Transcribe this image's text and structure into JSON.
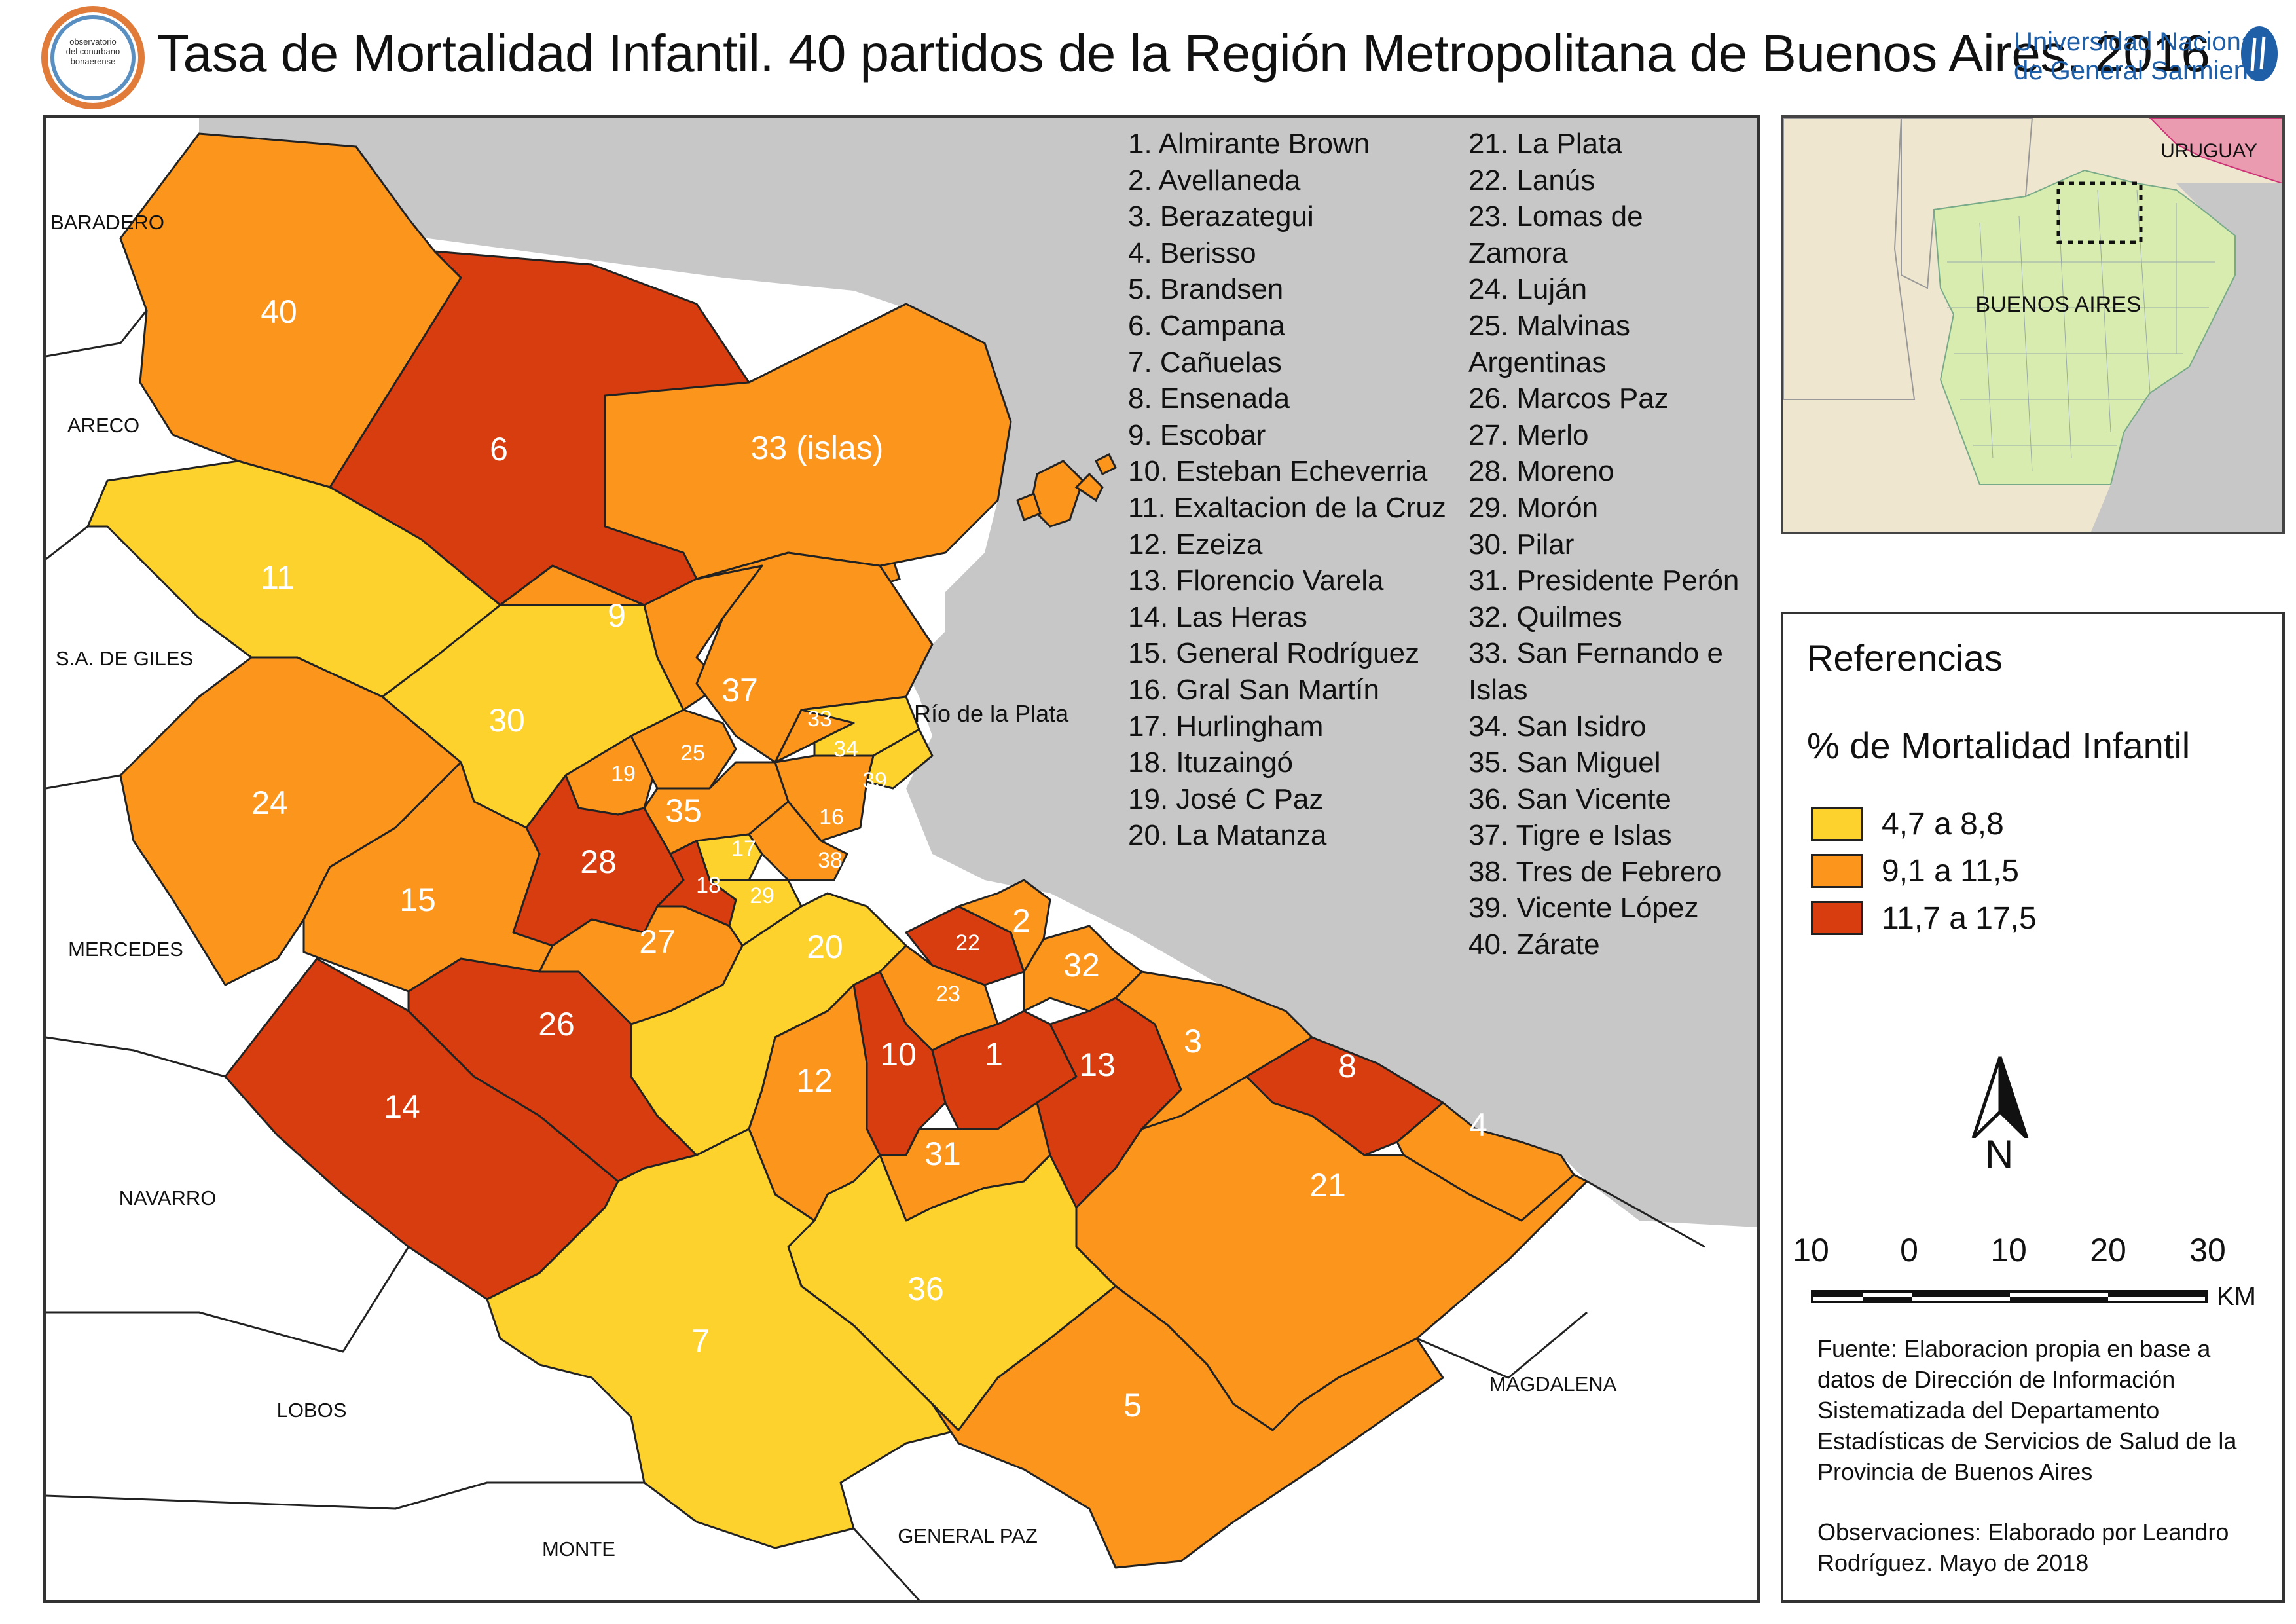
{
  "header": {
    "title": "Tasa de Mortalidad Infantil. 40 partidos de la Región Metropolitana de Buenos Aires. 2016",
    "logo_left_text": [
      "observatorio",
      "del conurbano",
      "bonaerense"
    ],
    "university_line1": "Universidad Nacional",
    "university_line2": "de General Sarmiento"
  },
  "colors": {
    "low": "#fdd22c",
    "mid": "#fb951c",
    "high": "#d83d0f",
    "water": "#c8c8c8",
    "land": "#ffffff",
    "border": "#222222"
  },
  "map": {
    "water_label": "Río de la Plata",
    "neighbors": [
      "BARADERO",
      "ARECO",
      "S.A. DE GILES",
      "MERCEDES",
      "NAVARRO",
      "LOBOS",
      "MONTE",
      "GENERAL PAZ",
      "MAGDALENA"
    ],
    "region_numbers": {
      "n1": "1",
      "n2": "2",
      "n3": "3",
      "n4": "4",
      "n5": "5",
      "n6": "6",
      "n7": "7",
      "n8": "8",
      "n9": "9",
      "n10": "10",
      "n11": "11",
      "n12": "12",
      "n13": "13",
      "n14": "14",
      "n15": "15",
      "n16": "16",
      "n17": "17",
      "n18": "18",
      "n19": "19",
      "n20": "20",
      "n21": "21",
      "n22": "22",
      "n23": "23",
      "n24": "24",
      "n25": "25",
      "n26": "26",
      "n27": "27",
      "n28": "28",
      "n29": "29",
      "n30": "30",
      "n31": "31",
      "n32": "32",
      "n33": "33 (islas)",
      "n33b": "33",
      "n34": "34",
      "n35": "35",
      "n36": "36",
      "n37": "37",
      "n38": "38",
      "n39": "39",
      "n40": "40"
    }
  },
  "partidos": [
    {
      "n": 1,
      "name": "Almirante Brown",
      "class": "high"
    },
    {
      "n": 2,
      "name": "Avellaneda",
      "class": "mid"
    },
    {
      "n": 3,
      "name": "Berazategui",
      "class": "mid"
    },
    {
      "n": 4,
      "name": "Berisso",
      "class": "mid"
    },
    {
      "n": 5,
      "name": "Brandsen",
      "class": "mid"
    },
    {
      "n": 6,
      "name": "Campana",
      "class": "high"
    },
    {
      "n": 7,
      "name": "Cañuelas",
      "class": "low"
    },
    {
      "n": 8,
      "name": "Ensenada",
      "class": "high"
    },
    {
      "n": 9,
      "name": "Escobar",
      "class": "mid"
    },
    {
      "n": 10,
      "name": "Esteban Echeverria",
      "class": "high"
    },
    {
      "n": 11,
      "name": "Exaltacion de la Cruz",
      "class": "low"
    },
    {
      "n": 12,
      "name": "Ezeiza",
      "class": "mid"
    },
    {
      "n": 13,
      "name": "Florencio Varela",
      "class": "high"
    },
    {
      "n": 14,
      "name": "Las Heras",
      "class": "high"
    },
    {
      "n": 15,
      "name": "General Rodríguez",
      "class": "mid"
    },
    {
      "n": 16,
      "name": "Gral San Martín",
      "class": "mid"
    },
    {
      "n": 17,
      "name": "Hurlingham",
      "class": "low"
    },
    {
      "n": 18,
      "name": "Ituzaingó",
      "class": "high"
    },
    {
      "n": 19,
      "name": "José C Paz",
      "class": "mid"
    },
    {
      "n": 20,
      "name": "La Matanza",
      "class": "low"
    },
    {
      "n": 21,
      "name": "La Plata",
      "class": "mid"
    },
    {
      "n": 22,
      "name": "Lanús",
      "class": "high"
    },
    {
      "n": 23,
      "name": "Lomas de Zamora",
      "class": "mid"
    },
    {
      "n": 24,
      "name": "Luján",
      "class": "mid"
    },
    {
      "n": 25,
      "name": "Malvinas Argentinas",
      "class": "mid"
    },
    {
      "n": 26,
      "name": "Marcos Paz",
      "class": "high"
    },
    {
      "n": 27,
      "name": "Merlo",
      "class": "mid"
    },
    {
      "n": 28,
      "name": "Moreno",
      "class": "high"
    },
    {
      "n": 29,
      "name": "Morón",
      "class": "low"
    },
    {
      "n": 30,
      "name": "Pilar",
      "class": "low"
    },
    {
      "n": 31,
      "name": "Presidente Perón",
      "class": "mid"
    },
    {
      "n": 32,
      "name": "Quilmes",
      "class": "mid"
    },
    {
      "n": 33,
      "name": "San Fernando e Islas",
      "class": "mid"
    },
    {
      "n": 34,
      "name": "San Isidro",
      "class": "low"
    },
    {
      "n": 35,
      "name": "San Miguel",
      "class": "mid"
    },
    {
      "n": 36,
      "name": "San Vicente",
      "class": "low"
    },
    {
      "n": 37,
      "name": "Tigre e Islas",
      "class": "mid"
    },
    {
      "n": 38,
      "name": "Tres de Febrero",
      "class": "mid"
    },
    {
      "n": 39,
      "name": "Vicente López",
      "class": "low"
    },
    {
      "n": 40,
      "name": "Zárate",
      "class": "mid"
    }
  ],
  "list": {
    "col1": [
      "1. Almirante Brown",
      "2. Avellaneda",
      "3. Berazategui",
      "4. Berisso",
      "5. Brandsen",
      "6. Campana",
      "7. Cañuelas",
      "8. Ensenada",
      "9. Escobar",
      "10. Esteban Echeverria",
      "11. Exaltacion de la Cruz",
      "12. Ezeiza",
      "13. Florencio Varela",
      "14. Las Heras",
      "15. General Rodríguez",
      "16. Gral San Martín",
      "17. Hurlingham",
      "18. Ituzaingó",
      "19. José C Paz",
      "20. La Matanza"
    ],
    "col2": [
      "21. La Plata",
      "22. Lanús",
      "23. Lomas de",
      "Zamora",
      "24. Luján",
      "25. Malvinas",
      "Argentinas",
      "26. Marcos Paz",
      "27. Merlo",
      "28. Moreno",
      "29. Morón",
      "30. Pilar",
      "31. Presidente Perón",
      "32. Quilmes",
      "33. San Fernando e",
      "Islas",
      "34. San Isidro",
      "35. San Miguel",
      "36. San Vicente",
      "37. Tigre e Islas",
      "38. Tres de Febrero",
      "39. Vicente López",
      "40. Zárate"
    ]
  },
  "inset": {
    "label_country": "URUGUAY",
    "label_province": "BUENOS AIRES"
  },
  "legend": {
    "title": "Referencias",
    "subtitle": "% de Mortalidad Infantil",
    "items": [
      {
        "label": "4,7 a 8,8",
        "color": "#fdd22c"
      },
      {
        "label": "9,1 a 11,5",
        "color": "#fb951c"
      },
      {
        "label": "11,7 a 17,5",
        "color": "#d83d0f"
      }
    ]
  },
  "north": {
    "label": "N"
  },
  "scale": {
    "ticks": [
      "10",
      "0",
      "10",
      "20",
      "30"
    ],
    "unit": "KM"
  },
  "notes": {
    "source": "Fuente: Elaboracion propia en base a datos de Dirección de Información Sistematizada del Departamento Estadísticas de Servicios de Salud de la Provincia de Buenos Aires",
    "observations": "Observaciones: Elaborado por Leandro Rodríguez. Mayo de 2018"
  }
}
